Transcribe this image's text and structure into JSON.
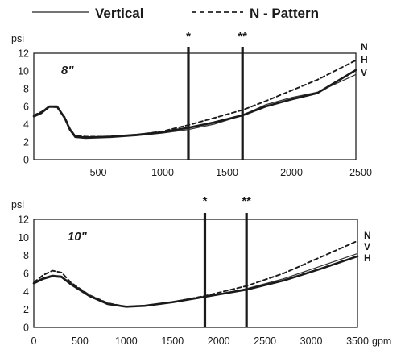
{
  "legend": {
    "vertical_label": "Vertical",
    "npattern_label": "N - Pattern"
  },
  "chart_data": [
    {
      "type": "line",
      "size_label": "8\"",
      "ylabel": "psi",
      "xlabel": "",
      "xlim": [
        0,
        2500
      ],
      "ylim": [
        0,
        12
      ],
      "x_ticks": [
        "500",
        "1000",
        "1500",
        "2000",
        "2500"
      ],
      "y_ticks": [
        "0",
        "2",
        "4",
        "6",
        "8",
        "10",
        "12"
      ],
      "markers": [
        {
          "label": "*",
          "x": 1200
        },
        {
          "label": "**",
          "x": 1620
        }
      ],
      "series": [
        {
          "name": "Vertical",
          "end_label": "V",
          "style": "solid-thin",
          "x": [
            0,
            60,
            120,
            180,
            240,
            280,
            320,
            400,
            600,
            800,
            1000,
            1200,
            1400,
            1620,
            1800,
            2000,
            2200,
            2500
          ],
          "y": [
            4.8,
            5.2,
            5.9,
            5.9,
            4.6,
            3.3,
            2.5,
            2.4,
            2.5,
            2.7,
            3.0,
            3.4,
            4.0,
            5.0,
            6.2,
            7.0,
            7.6,
            9.6
          ]
        },
        {
          "name": "",
          "end_label": "H",
          "style": "solid-thick",
          "x": [
            0,
            60,
            120,
            180,
            240,
            280,
            320,
            400,
            600,
            800,
            1000,
            1200,
            1400,
            1620,
            1800,
            2000,
            2200,
            2500
          ],
          "y": [
            4.9,
            5.3,
            6.0,
            6.0,
            4.7,
            3.4,
            2.6,
            2.5,
            2.6,
            2.8,
            3.1,
            3.6,
            4.2,
            5.0,
            6.0,
            6.8,
            7.5,
            10.1
          ]
        },
        {
          "name": "N - Pattern",
          "end_label": "N",
          "style": "dashed",
          "x": [
            0,
            60,
            120,
            180,
            240,
            280,
            320,
            400,
            600,
            800,
            1000,
            1200,
            1400,
            1620,
            1800,
            2000,
            2200,
            2500
          ],
          "y": [
            5.0,
            5.4,
            6.0,
            5.9,
            4.8,
            3.5,
            2.7,
            2.6,
            2.6,
            2.8,
            3.2,
            3.9,
            4.7,
            5.6,
            6.6,
            7.8,
            9.0,
            11.2
          ]
        }
      ]
    },
    {
      "type": "line",
      "size_label": "10\"",
      "ylabel": "psi",
      "xlabel": "gpm",
      "xlim": [
        0,
        3500
      ],
      "ylim": [
        0,
        12
      ],
      "x_ticks": [
        "0",
        "500",
        "1000",
        "1500",
        "2000",
        "2500",
        "3000",
        "3500"
      ],
      "y_ticks": [
        "0",
        "2",
        "4",
        "6",
        "8",
        "10",
        "12"
      ],
      "markers": [
        {
          "label": "*",
          "x": 1850
        },
        {
          "label": "**",
          "x": 2300
        }
      ],
      "series": [
        {
          "name": "N - Pattern",
          "end_label": "N",
          "style": "dashed",
          "x": [
            0,
            100,
            200,
            300,
            400,
            600,
            800,
            1000,
            1200,
            1500,
            1850,
            2300,
            2700,
            3100,
            3500
          ],
          "y": [
            5.0,
            5.8,
            6.3,
            6.1,
            5.0,
            3.6,
            2.7,
            2.3,
            2.4,
            2.8,
            3.5,
            4.6,
            6.0,
            7.8,
            9.6
          ]
        },
        {
          "name": "Vertical",
          "end_label": "V",
          "style": "solid-thin",
          "x": [
            0,
            100,
            200,
            300,
            400,
            600,
            800,
            1000,
            1200,
            1500,
            1850,
            2300,
            2700,
            3100,
            3500
          ],
          "y": [
            5.0,
            5.5,
            5.8,
            5.7,
            4.9,
            3.6,
            2.7,
            2.3,
            2.4,
            2.8,
            3.4,
            4.3,
            5.4,
            6.8,
            8.2
          ]
        },
        {
          "name": "",
          "end_label": "H",
          "style": "solid-thick",
          "x": [
            0,
            100,
            200,
            300,
            400,
            600,
            800,
            1000,
            1200,
            1500,
            1850,
            2300,
            2700,
            3100,
            3500
          ],
          "y": [
            4.9,
            5.4,
            5.7,
            5.6,
            4.8,
            3.5,
            2.6,
            2.3,
            2.4,
            2.8,
            3.4,
            4.2,
            5.2,
            6.5,
            7.9
          ]
        }
      ]
    }
  ]
}
